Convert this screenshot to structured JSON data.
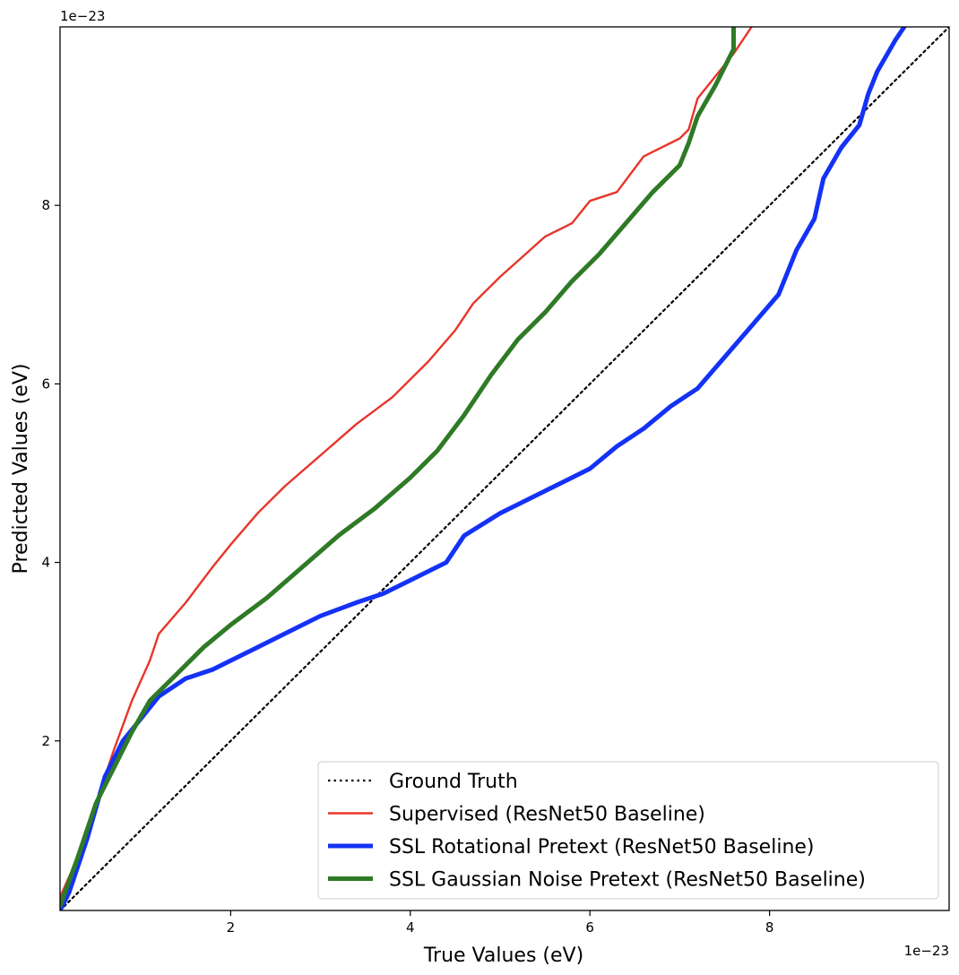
{
  "chart_data": {
    "type": "line",
    "xlabel": "True Values (eV)",
    "ylabel": "Predicted Values (eV)",
    "x_offset": "1e−23",
    "y_offset": "1e−23",
    "xlim": [
      0.1,
      10.0
    ],
    "ylim": [
      0.1,
      10.0
    ],
    "x_ticks": [
      2,
      4,
      6,
      8
    ],
    "y_ticks": [
      2,
      4,
      6,
      8
    ],
    "x_tick_labels": [
      "2",
      "4",
      "6",
      "8"
    ],
    "y_tick_labels": [
      "2",
      "4",
      "6",
      "8"
    ],
    "legend_position": "lower-right",
    "series": [
      {
        "name": "Ground Truth",
        "color": "#000000",
        "style": "dotted",
        "points": [
          [
            0.1,
            0.1
          ],
          [
            10.0,
            10.0
          ]
        ]
      },
      {
        "name": "Supervised (ResNet50 Baseline)",
        "color": "#e8352a",
        "style": "solid",
        "points": [
          [
            0.1,
            0.25
          ],
          [
            0.3,
            0.7
          ],
          [
            0.5,
            1.3
          ],
          [
            0.7,
            1.9
          ],
          [
            0.9,
            2.45
          ],
          [
            1.1,
            2.9
          ],
          [
            1.2,
            3.2
          ],
          [
            1.5,
            3.55
          ],
          [
            1.8,
            3.95
          ],
          [
            2.0,
            4.2
          ],
          [
            2.3,
            4.55
          ],
          [
            2.6,
            4.85
          ],
          [
            3.0,
            5.2
          ],
          [
            3.4,
            5.55
          ],
          [
            3.8,
            5.85
          ],
          [
            4.2,
            6.25
          ],
          [
            4.5,
            6.6
          ],
          [
            4.7,
            6.9
          ],
          [
            5.0,
            7.2
          ],
          [
            5.5,
            7.65
          ],
          [
            5.8,
            7.8
          ],
          [
            6.0,
            8.05
          ],
          [
            6.3,
            8.15
          ],
          [
            6.6,
            8.55
          ],
          [
            7.0,
            8.75
          ],
          [
            7.1,
            8.85
          ],
          [
            7.2,
            9.2
          ],
          [
            7.4,
            9.45
          ],
          [
            7.6,
            9.7
          ],
          [
            7.8,
            10.0
          ]
        ]
      },
      {
        "name": "SSL Rotational Pretext (ResNet50 Baseline)",
        "color": "#1432f5",
        "style": "thick",
        "points": [
          [
            0.1,
            0.1
          ],
          [
            0.2,
            0.3
          ],
          [
            0.4,
            0.9
          ],
          [
            0.6,
            1.6
          ],
          [
            0.8,
            2.0
          ],
          [
            1.0,
            2.25
          ],
          [
            1.2,
            2.5
          ],
          [
            1.5,
            2.7
          ],
          [
            1.8,
            2.8
          ],
          [
            2.2,
            3.0
          ],
          [
            2.6,
            3.2
          ],
          [
            3.0,
            3.4
          ],
          [
            3.4,
            3.55
          ],
          [
            3.7,
            3.65
          ],
          [
            4.0,
            3.8
          ],
          [
            4.4,
            4.0
          ],
          [
            4.6,
            4.3
          ],
          [
            5.0,
            4.55
          ],
          [
            5.5,
            4.8
          ],
          [
            6.0,
            5.05
          ],
          [
            6.3,
            5.3
          ],
          [
            6.6,
            5.5
          ],
          [
            6.9,
            5.75
          ],
          [
            7.2,
            5.95
          ],
          [
            7.5,
            6.3
          ],
          [
            7.8,
            6.65
          ],
          [
            8.1,
            7.0
          ],
          [
            8.3,
            7.5
          ],
          [
            8.5,
            7.85
          ],
          [
            8.6,
            8.3
          ],
          [
            8.8,
            8.65
          ],
          [
            9.0,
            8.9
          ],
          [
            9.1,
            9.25
          ],
          [
            9.2,
            9.5
          ],
          [
            9.4,
            9.85
          ],
          [
            9.5,
            10.0
          ]
        ]
      },
      {
        "name": "SSL Gaussian Noise Pretext (ResNet50 Baseline)",
        "color": "#2f7a26",
        "style": "thick",
        "points": [
          [
            0.1,
            0.15
          ],
          [
            0.3,
            0.7
          ],
          [
            0.5,
            1.3
          ],
          [
            0.7,
            1.7
          ],
          [
            0.9,
            2.1
          ],
          [
            1.1,
            2.45
          ],
          [
            1.4,
            2.75
          ],
          [
            1.7,
            3.05
          ],
          [
            2.0,
            3.3
          ],
          [
            2.4,
            3.6
          ],
          [
            2.8,
            3.95
          ],
          [
            3.2,
            4.3
          ],
          [
            3.6,
            4.6
          ],
          [
            4.0,
            4.95
          ],
          [
            4.3,
            5.25
          ],
          [
            4.6,
            5.65
          ],
          [
            4.9,
            6.1
          ],
          [
            5.2,
            6.5
          ],
          [
            5.5,
            6.8
          ],
          [
            5.8,
            7.15
          ],
          [
            6.1,
            7.45
          ],
          [
            6.4,
            7.8
          ],
          [
            6.7,
            8.15
          ],
          [
            7.0,
            8.45
          ],
          [
            7.1,
            8.7
          ],
          [
            7.2,
            9.0
          ],
          [
            7.4,
            9.35
          ],
          [
            7.5,
            9.55
          ],
          [
            7.6,
            9.75
          ],
          [
            7.6,
            10.0
          ]
        ]
      }
    ]
  }
}
